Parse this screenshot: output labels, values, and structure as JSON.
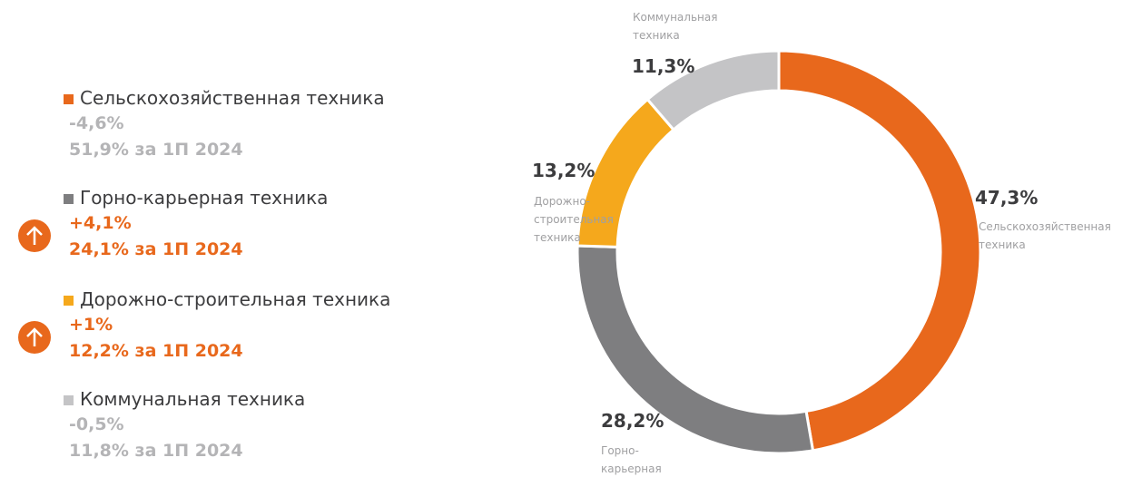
{
  "chart_data": {
    "type": "donut",
    "categories": [
      "Сельскохозяйственная техника",
      "Горно-карьерная техника",
      "Дорожно-строительная техника",
      "Коммунальная техника"
    ],
    "values": [
      47.3,
      28.2,
      13.2,
      11.3
    ],
    "value_labels": [
      "47,3%",
      "28,2%",
      "13,2%",
      "11,3%"
    ],
    "colors": [
      "#e8681c",
      "#7e7e80",
      "#f5a81c",
      "#c4c4c6"
    ],
    "changes": [
      "-4,6%",
      "+4,1%",
      "+1%",
      "-0,5%"
    ],
    "change_colors": [
      "#b4b4b6",
      "#e8681c",
      "#e8681c",
      "#b4b4b6"
    ],
    "previous": [
      "51,9% за 1П 2024",
      "24,1% за 1П 2024",
      "12,2% за 1П 2024",
      "11,8% за 1П 2024"
    ]
  }
}
